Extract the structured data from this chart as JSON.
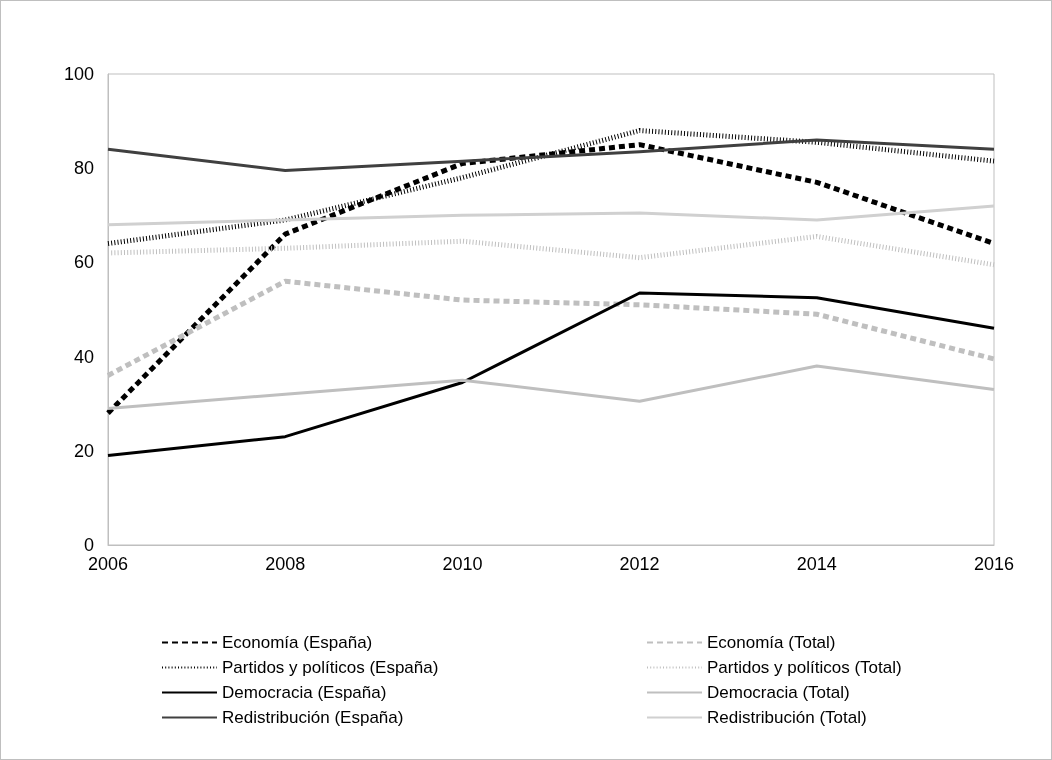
{
  "chart_data": {
    "type": "line",
    "x": [
      2006,
      2008,
      2010,
      2012,
      2014,
      2016
    ],
    "xlim": [
      2006,
      2016
    ],
    "xticks": [
      2006,
      2008,
      2010,
      2012,
      2014,
      2016
    ],
    "ylim": [
      0,
      100
    ],
    "yticks": [
      0,
      20,
      40,
      60,
      80,
      100
    ],
    "grid": false,
    "legend": "bottom",
    "marker": "none",
    "series": [
      {
        "name": "Economía (España)",
        "color": "#000000",
        "line_style": "dashed",
        "values": [
          28,
          66,
          81,
          85,
          77,
          64
        ]
      },
      {
        "name": "Economía (Total)",
        "color": "#bfbfbf",
        "line_style": "dashed",
        "values": [
          36,
          56,
          52,
          51,
          49,
          39.5
        ]
      },
      {
        "name": "Partidos y políticos (España)",
        "color": "#000000",
        "line_style": "dotted",
        "values": [
          64,
          69,
          78,
          88,
          85.5,
          81.5
        ]
      },
      {
        "name": "Partidos y políticos (Total)",
        "color": "#bfbfbf",
        "line_style": "dotted",
        "values": [
          62,
          63,
          64.5,
          61,
          65.5,
          59.5
        ]
      },
      {
        "name": "Democracia (España)",
        "color": "#000000",
        "line_style": "solid",
        "values": [
          19,
          23,
          34.5,
          53.5,
          52.5,
          46
        ]
      },
      {
        "name": "Democracia (Total)",
        "color": "#bfbfbf",
        "line_style": "solid",
        "values": [
          29,
          32,
          35,
          30.5,
          38,
          33
        ]
      },
      {
        "name": "Redistribución (España)",
        "color": "#404040",
        "line_style": "solid",
        "values": [
          84,
          79.5,
          81.5,
          83.5,
          86,
          84
        ]
      },
      {
        "name": "Redistribución (Total)",
        "color": "#d0d0d0",
        "line_style": "solid",
        "values": [
          68,
          69,
          70,
          70.5,
          69,
          72
        ]
      }
    ]
  }
}
